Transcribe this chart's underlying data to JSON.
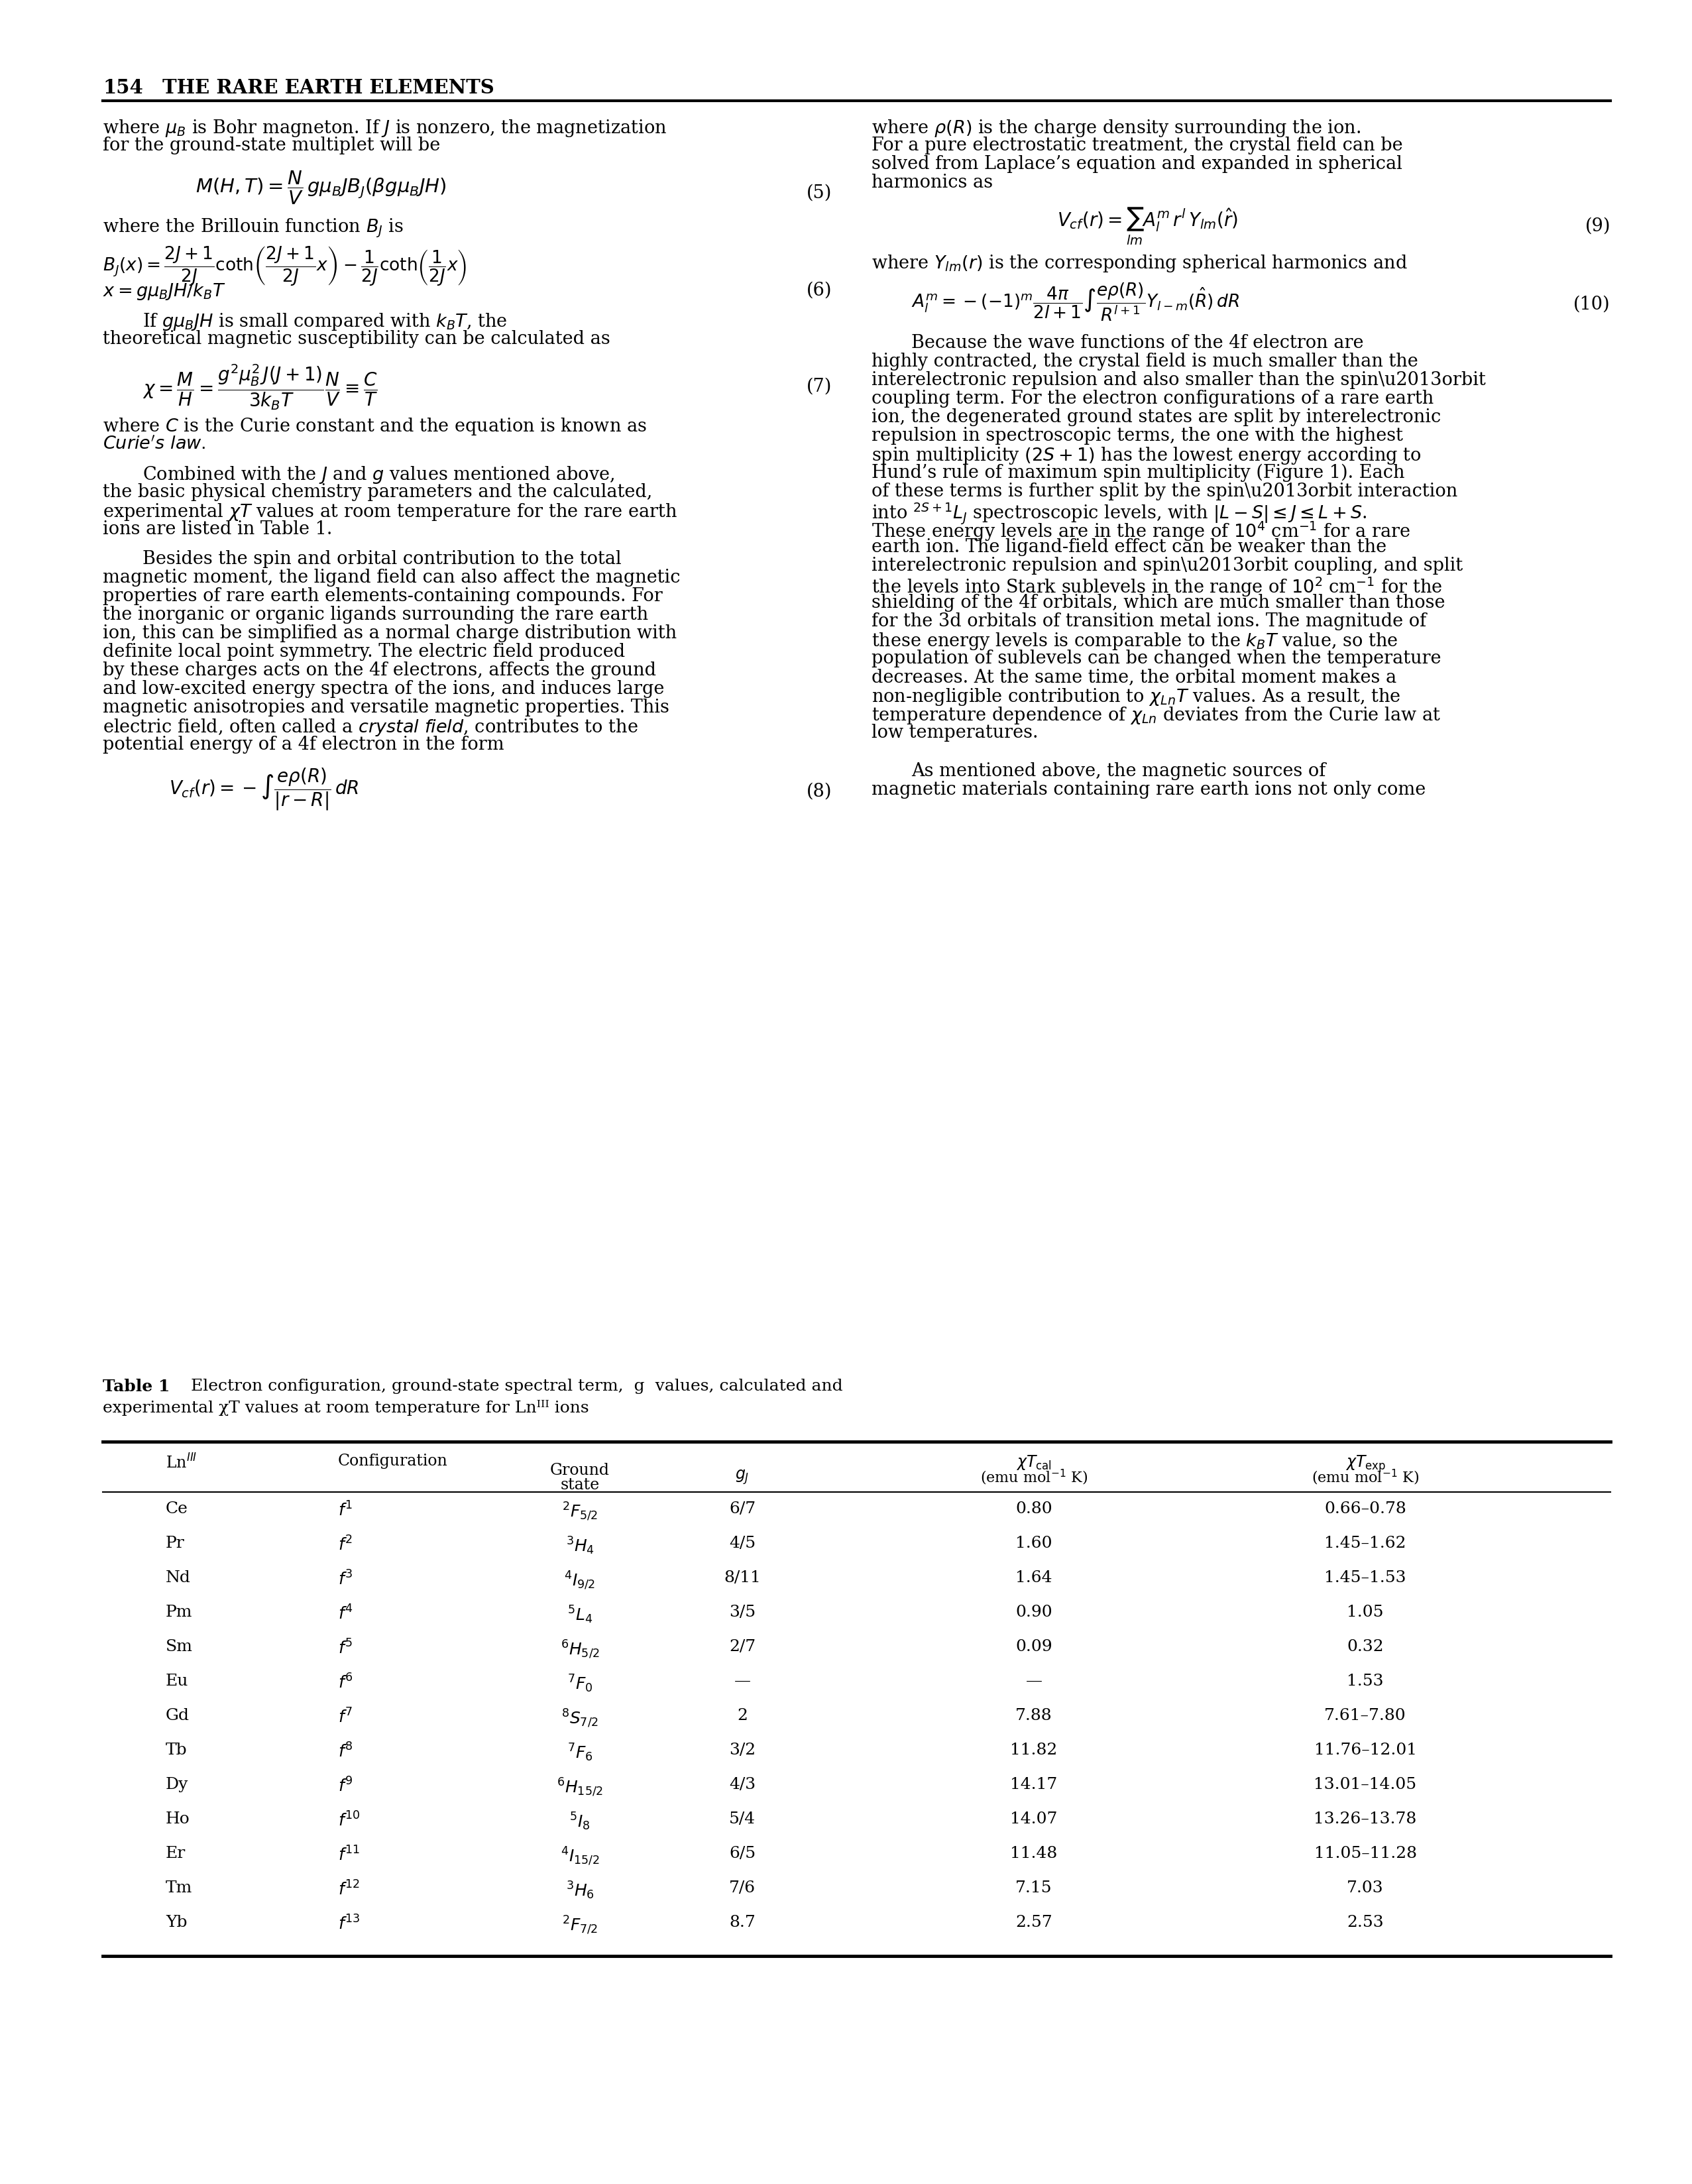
{
  "page_number": "154",
  "page_title": "THE RARE EARTH ELEMENTS",
  "table": {
    "rows": [
      [
        "Ce",
        "f^1",
        "^2F_{5/2}",
        "6/7",
        "0.80",
        "0.66–0.78"
      ],
      [
        "Pr",
        "f^2",
        "^3H_4",
        "4/5",
        "1.60",
        "1.45–1.62"
      ],
      [
        "Nd",
        "f^3",
        "^4I_{9/2}",
        "8/11",
        "1.64",
        "1.45–1.53"
      ],
      [
        "Pm",
        "f^4",
        "^5L_4",
        "3/5",
        "0.90",
        "1.05"
      ],
      [
        "Sm",
        "f^5",
        "^6H_{5/2}",
        "2/7",
        "0.09",
        "0.32"
      ],
      [
        "Eu",
        "f^6",
        "^7F_0",
        "—",
        "—",
        "1.53"
      ],
      [
        "Gd",
        "f^7",
        "^8S_{7/2}",
        "2",
        "7.88",
        "7.61–7.80"
      ],
      [
        "Tb",
        "f^8",
        "^7F_6",
        "3/2",
        "11.82",
        "11.76–12.01"
      ],
      [
        "Dy",
        "f^9",
        "^6H_{15/2}",
        "4/3",
        "14.17",
        "13.01–14.05"
      ],
      [
        "Ho",
        "f^{10}",
        "^5I_8",
        "5/4",
        "14.07",
        "13.26–13.78"
      ],
      [
        "Er",
        "f^{11}",
        "^4I_{15/2}",
        "6/5",
        "11.48",
        "11.05–11.28"
      ],
      [
        "Tm",
        "f^{12}",
        "^3H_6",
        "7/6",
        "7.15",
        "7.03"
      ],
      [
        "Yb",
        "f^{13}",
        "^2F_{7/2}",
        "8.7",
        "2.57",
        "2.53"
      ]
    ]
  }
}
